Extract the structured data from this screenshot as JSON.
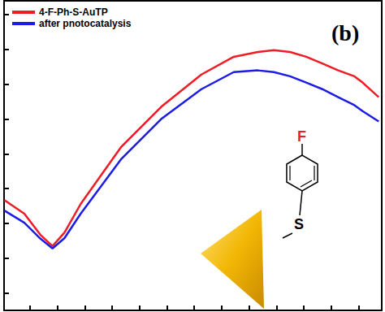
{
  "chart_data": {
    "type": "line",
    "x": [
      -0.94,
      -0.21,
      0.38,
      0.82,
      1.26,
      1.85,
      3.32,
      4.79,
      6.26,
      7.44,
      8.32,
      8.91,
      9.5,
      10.09,
      10.68,
      11.26,
      11.85,
      12.15,
      12.74
    ],
    "series": [
      {
        "name": "4-F-Ph-S-AuTP",
        "color": "#ee1c25",
        "values": [
          2.67,
          2.28,
          1.67,
          1.35,
          1.74,
          2.56,
          4.19,
          5.35,
          6.28,
          6.79,
          6.93,
          6.98,
          6.93,
          6.79,
          6.6,
          6.4,
          6.23,
          6.05,
          5.63
        ]
      },
      {
        "name": "after pnotocatalysis",
        "color": "#1c1ce6",
        "values": [
          2.37,
          2.02,
          1.56,
          1.28,
          1.58,
          2.28,
          3.84,
          5.0,
          5.86,
          6.35,
          6.4,
          6.35,
          6.23,
          6.05,
          5.86,
          5.63,
          5.4,
          5.23,
          4.93
        ]
      }
    ],
    "xlim": [
      -0.95,
      12.85
    ],
    "xticks": [
      0,
      1,
      2,
      3,
      4,
      5,
      6,
      7,
      8,
      9,
      10,
      11,
      12
    ],
    "ylim": [
      -0.5,
      8.4
    ],
    "yticks": [
      0,
      1,
      2,
      3,
      4,
      5,
      6,
      7,
      8
    ],
    "tick_labels": false,
    "grid": false,
    "legend": "top-left",
    "annotations": [
      "(b)"
    ],
    "inset_labels": [
      "F",
      "S"
    ]
  }
}
